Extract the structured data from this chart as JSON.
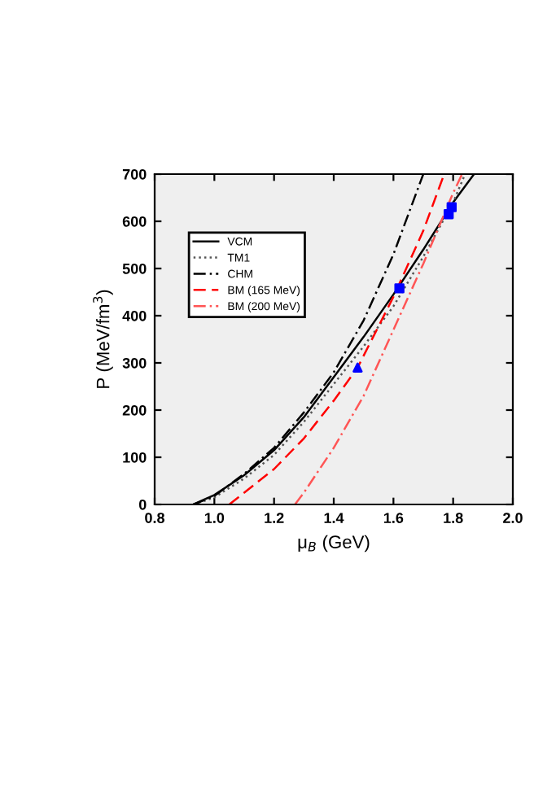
{
  "chart_data": {
    "type": "line",
    "xlabel": "μ$_{B}$ (GeV)",
    "ylabel": "P (MeV/fm$^{3}$)",
    "xlim": [
      0.8,
      2.0
    ],
    "ylim": [
      0,
      700
    ],
    "xticks": [
      0.8,
      {
        "value": 1,
        "label": "1.0"
      },
      1.2,
      1.4,
      1.6,
      1.8,
      {
        "value": 2,
        "label": "2.0"
      }
    ],
    "yticks": [
      0,
      100,
      200,
      300,
      400,
      500,
      600,
      700
    ],
    "grid": false,
    "legend": "top left",
    "marker": "none",
    "series": [
      {
        "name": "VCM",
        "color": "#000000",
        "line_style": "solid",
        "x": [
          0.93,
          1.0,
          1.1,
          1.2,
          1.3,
          1.4,
          1.5,
          1.6,
          1.7,
          1.8,
          1.87
        ],
        "values": [
          0,
          20,
          62,
          115,
          185,
          270,
          355,
          445,
          540,
          640,
          700
        ]
      },
      {
        "name": "TM1",
        "color": "#555555",
        "line_style": "dotted",
        "x": [
          0.93,
          1.0,
          1.1,
          1.2,
          1.3,
          1.4,
          1.5,
          1.6,
          1.7,
          1.8,
          1.84
        ],
        "values": [
          0,
          15,
          55,
          105,
          175,
          255,
          335,
          420,
          525,
          640,
          700
        ]
      },
      {
        "name": "CHM",
        "color": "#000000",
        "line_style": "dashdot",
        "x": [
          0.93,
          1.0,
          1.1,
          1.2,
          1.3,
          1.4,
          1.5,
          1.6,
          1.7
        ],
        "values": [
          0,
          18,
          65,
          120,
          195,
          280,
          390,
          530,
          700
        ]
      },
      {
        "name": "BM (165 MeV)",
        "color": "#ff0000",
        "line_style": "dashed",
        "x": [
          1.05,
          1.1,
          1.2,
          1.3,
          1.4,
          1.48,
          1.6,
          1.7,
          1.77
        ],
        "values": [
          0,
          25,
          75,
          140,
          220,
          290,
          440,
          580,
          700
        ]
      },
      {
        "name": "BM (200 MeV)",
        "color": "#ff5555",
        "line_style": "dashdot",
        "x": [
          1.27,
          1.3,
          1.4,
          1.5,
          1.6,
          1.7,
          1.8,
          1.83
        ],
        "values": [
          0,
          25,
          120,
          230,
          370,
          510,
          660,
          700
        ]
      },
      {
        "type": "scatter",
        "marker": "triangle",
        "color": "#0000ff",
        "x": [
          1.48
        ],
        "values": [
          290
        ]
      },
      {
        "type": "scatter",
        "marker": "square",
        "color": "#0000ff",
        "x": [
          1.62,
          1.785,
          1.795
        ],
        "values": [
          458,
          615,
          630
        ]
      }
    ]
  }
}
